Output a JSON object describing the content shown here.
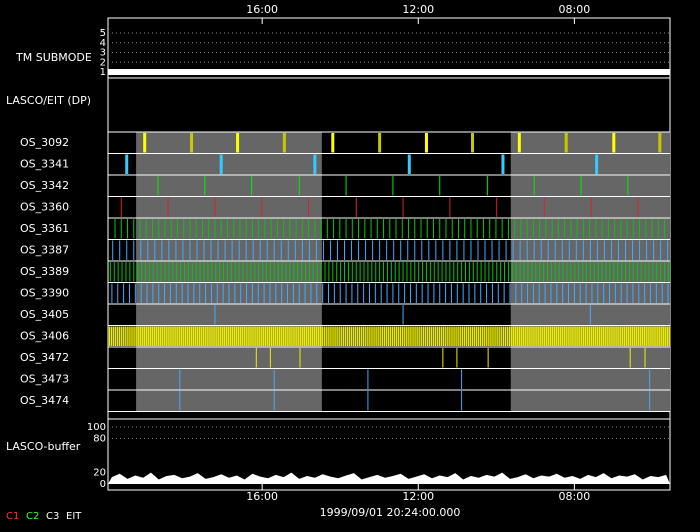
{
  "chart_data": {
    "type": "timeline",
    "xlim": [
      0,
      72
    ],
    "xticks": [
      {
        "value": 19.75,
        "label": "16:00"
      },
      {
        "value": 39.75,
        "label": "12:00"
      },
      {
        "value": 59.75,
        "label": "08:00"
      }
    ],
    "date_label": "1999/09/01 20:24:00.000",
    "tm_submode": {
      "label": "TM SUBMODE",
      "ylim": [
        1,
        5
      ],
      "yticks": [
        5,
        4,
        3,
        2,
        1
      ],
      "value": 1
    },
    "dp_label": "LASCO/EIT (DP)",
    "shaded": [
      [
        3.6,
        27.4
      ],
      [
        51.6,
        72
      ]
    ],
    "rows": [
      {
        "name": "OS_3092",
        "color": "#ffff00",
        "events": [
          4.7,
          10.7,
          16.6,
          22.6,
          28.8,
          34.8,
          40.8,
          46.7,
          52.7,
          58.7,
          64.8,
          70.7
        ]
      },
      {
        "name": "OS_3341",
        "color": "#33ccff",
        "events": [
          2.4,
          14.5,
          26.5,
          38.6,
          50.6,
          62.6
        ]
      },
      {
        "name": "OS_3342",
        "color": "#00ee00",
        "events": [
          6.4,
          12.4,
          18.4,
          24.5,
          30.5,
          36.5,
          42.5,
          48.6,
          54.6,
          60.6,
          66.6
        ]
      },
      {
        "name": "OS_3360",
        "color": "#dd2222",
        "events": [
          1.7,
          7.7,
          13.7,
          19.7,
          25.7,
          31.8,
          37.8,
          43.8,
          49.8,
          55.9,
          61.9,
          67.9
        ]
      },
      {
        "name": "OS_3361",
        "color": "#00cc00",
        "start": 0.9,
        "interval": 0.8
      },
      {
        "name": "OS_3387",
        "color": "#44aaff",
        "start": 0.6,
        "interval": 0.9
      },
      {
        "name": "OS_3389",
        "color": "#00cc00",
        "start": 0.3,
        "interval": 0.5
      },
      {
        "name": "OS_3390",
        "color": "#44aaff",
        "start": 0.5,
        "interval": 0.75
      },
      {
        "name": "OS_3405",
        "color": "#44aaff",
        "events": [
          13.7,
          37.8,
          61.8
        ]
      },
      {
        "name": "OS_3406",
        "color": "#eeee00",
        "start": 0.2,
        "interval": 0.25
      },
      {
        "name": "OS_3472",
        "color": "#eeee00",
        "events": [
          19.0,
          20.8,
          24.6,
          42.9,
          44.7,
          48.7,
          66.9,
          68.8
        ]
      },
      {
        "name": "OS_3473",
        "color": "#44aaff",
        "events": [
          9.2,
          21.3,
          33.3,
          45.3,
          69.4
        ]
      },
      {
        "name": "OS_3474",
        "color": "#44aaff",
        "events": [
          9.2,
          21.3,
          33.3,
          45.3,
          69.4
        ]
      }
    ],
    "buffer": {
      "label": "LASCO-buffer",
      "ylim": [
        0,
        100
      ],
      "yticks": [
        100,
        80,
        20,
        0
      ],
      "values": [
        12,
        18,
        9,
        15,
        11,
        20,
        8,
        14,
        16,
        10,
        13,
        19,
        9,
        12,
        17,
        11,
        15,
        8,
        18,
        13,
        10,
        16,
        12,
        20,
        9,
        14,
        11,
        17,
        13,
        10,
        15,
        19,
        8,
        12,
        16,
        11,
        14,
        18,
        9,
        13,
        17,
        10,
        15,
        12,
        19,
        8,
        14,
        11,
        16,
        13,
        20,
        9,
        12,
        17,
        10,
        15,
        13,
        18,
        11,
        14,
        9,
        16,
        12,
        19,
        10,
        15,
        13,
        17,
        8,
        14,
        12,
        16
      ]
    },
    "legend": [
      {
        "name": "C1",
        "color": "#ff3333"
      },
      {
        "name": "C2",
        "color": "#33ff33"
      },
      {
        "name": "C3",
        "color": "#ffffff"
      },
      {
        "name": "EIT",
        "color": "#ffffff"
      }
    ]
  }
}
